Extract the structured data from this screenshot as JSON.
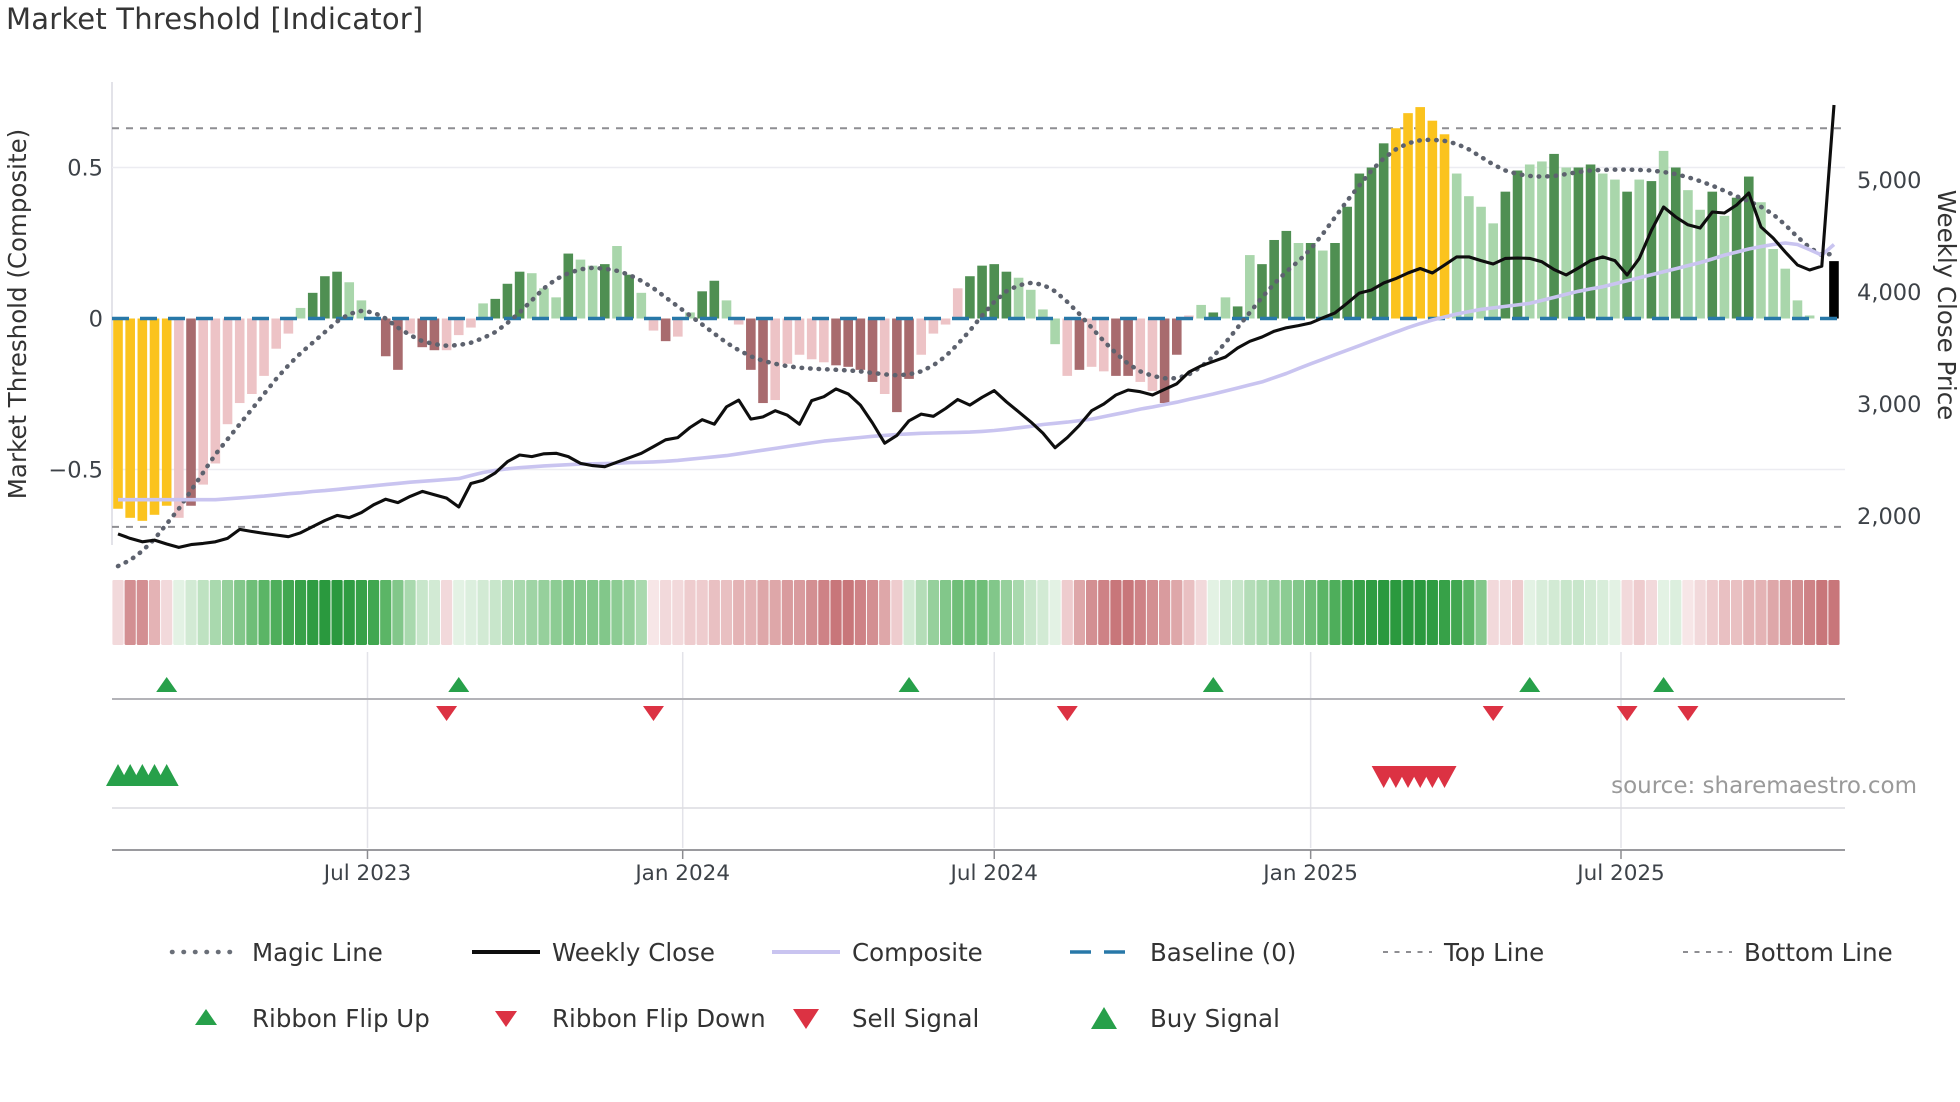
{
  "title": "Market Threshold [Indicator]",
  "source": "source: sharemaestro.com",
  "axes": {
    "left_title": "Market Threshold (Composite)",
    "right_title": "Weekly Close Price",
    "left_ticks": [
      {
        "label": "0.5",
        "value": 0.5
      },
      {
        "label": "0",
        "value": 0.0
      },
      {
        "label": "−0.5",
        "value": -0.5
      }
    ],
    "right_ticks": [
      {
        "label": "5,000",
        "value": 5000
      },
      {
        "label": "4,000",
        "value": 4000
      },
      {
        "label": "3,000",
        "value": 3000
      },
      {
        "label": "2,000",
        "value": 2000
      }
    ],
    "x_ticks": [
      {
        "label": "Jul 2023",
        "week": 20.5
      },
      {
        "label": "Jan 2024",
        "week": 46.4
      },
      {
        "label": "Jul 2024",
        "week": 72.0
      },
      {
        "label": "Jan 2025",
        "week": 98.0
      },
      {
        "label": "Jul 2025",
        "week": 123.5
      }
    ]
  },
  "colors": {
    "bar_yellow": "#FBC31E",
    "bar_light_pink": "#EDC3C6",
    "bar_dark_red": "#A86B6E",
    "bar_light_green": "#A9D6AB",
    "bar_dark_green": "#4F8F52",
    "baseline_blue": "#2878A8",
    "magic_gray": "#5D626E",
    "composite_purple": "#C9C4F0",
    "weekly_close_black": "#0E0E0E",
    "band_gray": "#8E8E92",
    "grid_light": "#ECECF1",
    "signal_green": "#27A04A",
    "signal_red": "#DC3243"
  },
  "chart_data": {
    "type": "bar",
    "title": "Market Threshold [Indicator]",
    "ylabel_left": "Market Threshold (Composite)",
    "ylabel_right": "Weekly Close Price",
    "ylim_left": [
      -0.75,
      0.78
    ],
    "baseline": 0,
    "top_line": 0.63,
    "bottom_line": -0.69,
    "weeks": 142,
    "bar_values": [
      -0.63,
      -0.66,
      -0.67,
      -0.65,
      -0.62,
      -0.66,
      -0.62,
      -0.55,
      -0.48,
      -0.35,
      -0.28,
      -0.25,
      -0.19,
      -0.1,
      -0.05,
      0.035,
      0.085,
      0.14,
      0.155,
      0.12,
      0.06,
      0.005,
      -0.125,
      -0.17,
      -0.05,
      -0.095,
      -0.105,
      -0.105,
      -0.055,
      -0.03,
      0.05,
      0.065,
      0.115,
      0.155,
      0.15,
      0.1,
      0.07,
      0.215,
      0.195,
      0.175,
      0.18,
      0.24,
      0.145,
      0.085,
      -0.04,
      -0.075,
      -0.06,
      0.02,
      0.09,
      0.125,
      0.06,
      -0.02,
      -0.17,
      -0.28,
      -0.27,
      -0.15,
      -0.12,
      -0.135,
      -0.145,
      -0.155,
      -0.16,
      -0.17,
      -0.21,
      -0.25,
      -0.31,
      -0.2,
      -0.12,
      -0.05,
      -0.02,
      0.1,
      0.14,
      0.175,
      0.18,
      0.155,
      0.135,
      0.095,
      0.03,
      -0.085,
      -0.19,
      -0.17,
      -0.16,
      -0.175,
      -0.19,
      -0.19,
      -0.21,
      -0.24,
      -0.28,
      -0.12,
      0.01,
      0.045,
      0.02,
      0.07,
      0.04,
      0.21,
      0.18,
      0.26,
      0.29,
      0.25,
      0.25,
      0.225,
      0.25,
      0.37,
      0.48,
      0.5,
      0.58,
      0.63,
      0.68,
      0.7,
      0.655,
      0.61,
      0.48,
      0.405,
      0.37,
      0.315,
      0.42,
      0.49,
      0.51,
      0.52,
      0.545,
      0.5,
      0.5,
      0.51,
      0.48,
      0.46,
      0.42,
      0.46,
      0.455,
      0.555,
      0.5,
      0.425,
      0.36,
      0.42,
      0.34,
      0.4,
      0.47,
      0.385,
      0.23,
      0.165,
      0.06,
      0.01,
      0.0,
      0.19
    ],
    "bar_colors": "YYYYYprppppppppgGGGgggrrprrpppgGGGgggGggGgGgprpgGGgprrppppprrrrprrppppGGGGggggprpprrpprrpgGgGgGGGgGgGGGGGYYYYYggggGGggGgGGggGgGgGggGgGGgggggG",
    "weekly_close": [
      1840,
      1800,
      1770,
      1785,
      1750,
      1720,
      1745,
      1755,
      1770,
      1800,
      1880,
      1862,
      1845,
      1830,
      1815,
      1850,
      1905,
      1960,
      2005,
      1985,
      2030,
      2100,
      2150,
      2120,
      2175,
      2220,
      2190,
      2160,
      2080,
      2290,
      2320,
      2385,
      2485,
      2545,
      2530,
      2555,
      2560,
      2530,
      2470,
      2450,
      2440,
      2480,
      2520,
      2560,
      2620,
      2680,
      2700,
      2790,
      2860,
      2820,
      2975,
      3035,
      2865,
      2885,
      2940,
      2900,
      2820,
      3030,
      3065,
      3135,
      3090,
      2990,
      2830,
      2650,
      2720,
      2850,
      2910,
      2890,
      2960,
      3040,
      2990,
      3060,
      3120,
      3020,
      2930,
      2840,
      2740,
      2610,
      2700,
      2810,
      2940,
      3000,
      3080,
      3125,
      3110,
      3080,
      3130,
      3180,
      3286,
      3340,
      3380,
      3420,
      3500,
      3560,
      3598,
      3650,
      3680,
      3700,
      3723,
      3770,
      3813,
      3900,
      3990,
      4018,
      4080,
      4120,
      4170,
      4210,
      4170,
      4240,
      4313,
      4313,
      4280,
      4250,
      4300,
      4304,
      4300,
      4270,
      4200,
      4152,
      4214,
      4280,
      4313,
      4280,
      4152,
      4300,
      4550,
      4759,
      4670,
      4600,
      4571,
      4714,
      4705,
      4777,
      4884,
      4580,
      4482,
      4357,
      4241,
      4196,
      4230,
      5670
    ],
    "composite": [
      -0.6,
      -0.6,
      -0.6,
      -0.6,
      -0.6,
      -0.6,
      -0.6,
      -0.6,
      -0.6,
      -0.597,
      -0.594,
      -0.591,
      -0.588,
      -0.584,
      -0.58,
      -0.577,
      -0.573,
      -0.57,
      -0.566,
      -0.562,
      -0.558,
      -0.554,
      -0.55,
      -0.546,
      -0.542,
      -0.539,
      -0.536,
      -0.533,
      -0.53,
      -0.52,
      -0.51,
      -0.503,
      -0.498,
      -0.494,
      -0.491,
      -0.488,
      -0.486,
      -0.484,
      -0.482,
      -0.481,
      -0.48,
      -0.479,
      -0.477,
      -0.476,
      -0.475,
      -0.473,
      -0.47,
      -0.466,
      -0.462,
      -0.458,
      -0.454,
      -0.448,
      -0.442,
      -0.436,
      -0.43,
      -0.424,
      -0.418,
      -0.412,
      -0.406,
      -0.402,
      -0.398,
      -0.394,
      -0.39,
      -0.387,
      -0.384,
      -0.382,
      -0.38,
      -0.379,
      -0.378,
      -0.377,
      -0.376,
      -0.374,
      -0.371,
      -0.367,
      -0.362,
      -0.357,
      -0.351,
      -0.347,
      -0.343,
      -0.338,
      -0.333,
      -0.325,
      -0.317,
      -0.309,
      -0.3,
      -0.293,
      -0.285,
      -0.277,
      -0.268,
      -0.259,
      -0.25,
      -0.24,
      -0.23,
      -0.22,
      -0.21,
      -0.196,
      -0.182,
      -0.166,
      -0.15,
      -0.135,
      -0.12,
      -0.105,
      -0.09,
      -0.075,
      -0.06,
      -0.045,
      -0.03,
      -0.017,
      -0.005,
      0.005,
      0.015,
      0.023,
      0.03,
      0.035,
      0.04,
      0.045,
      0.05,
      0.06,
      0.07,
      0.08,
      0.09,
      0.098,
      0.105,
      0.115,
      0.125,
      0.135,
      0.145,
      0.155,
      0.165,
      0.175,
      0.185,
      0.197,
      0.21,
      0.22,
      0.23,
      0.238,
      0.245,
      0.25,
      0.245,
      0.228,
      0.21,
      0.245
    ],
    "magic_line": [
      -0.82,
      -0.8,
      -0.77,
      -0.73,
      -0.68,
      -0.63,
      -0.57,
      -0.51,
      -0.45,
      -0.4,
      -0.35,
      -0.3,
      -0.25,
      -0.2,
      -0.155,
      -0.115,
      -0.08,
      -0.045,
      -0.01,
      0.015,
      0.025,
      0.02,
      0.0,
      -0.03,
      -0.055,
      -0.075,
      -0.085,
      -0.09,
      -0.088,
      -0.08,
      -0.065,
      -0.045,
      -0.015,
      0.02,
      0.06,
      0.1,
      0.13,
      0.15,
      0.163,
      0.168,
      0.165,
      0.158,
      0.145,
      0.125,
      0.1,
      0.07,
      0.04,
      0.01,
      -0.02,
      -0.05,
      -0.08,
      -0.105,
      -0.125,
      -0.14,
      -0.15,
      -0.158,
      -0.163,
      -0.166,
      -0.168,
      -0.17,
      -0.172,
      -0.175,
      -0.18,
      -0.185,
      -0.188,
      -0.185,
      -0.175,
      -0.155,
      -0.125,
      -0.085,
      -0.04,
      0.01,
      0.055,
      0.09,
      0.11,
      0.118,
      0.112,
      0.09,
      0.055,
      0.015,
      -0.03,
      -0.075,
      -0.115,
      -0.15,
      -0.175,
      -0.19,
      -0.198,
      -0.198,
      -0.185,
      -0.16,
      -0.125,
      -0.08,
      -0.03,
      0.02,
      0.07,
      0.115,
      0.155,
      0.19,
      0.23,
      0.28,
      0.335,
      0.39,
      0.44,
      0.49,
      0.53,
      0.56,
      0.58,
      0.59,
      0.592,
      0.588,
      0.578,
      0.56,
      0.535,
      0.51,
      0.49,
      0.478,
      0.472,
      0.47,
      0.472,
      0.478,
      0.485,
      0.49,
      0.492,
      0.493,
      0.493,
      0.492,
      0.49,
      0.485,
      0.478,
      0.468,
      0.455,
      0.44,
      0.423,
      0.405,
      0.388,
      0.37,
      0.345,
      0.31,
      0.27,
      0.235,
      0.21,
      0.215
    ],
    "ribbon_colors": [
      "#F2D9DB",
      "#D38F92",
      "#D38F92",
      "#E4B3B5",
      "#F2D9DB",
      "#E3F2E4",
      "#D2EAD4",
      "#BEE2C1",
      "#A9D9AE",
      "#96D09C",
      "#82C78A",
      "#6FBE78",
      "#5BB566",
      "#4EAE5B",
      "#41A750",
      "#37A148",
      "#2F9C42",
      "#2A993E",
      "#2A993E",
      "#2F9C42",
      "#37A148",
      "#41A750",
      "#5BB566",
      "#82C78A",
      "#A9D9AE",
      "#C8E6CB",
      "#D2EAD4",
      "#F2D9DB",
      "#E3F2E4",
      "#DCEFDE",
      "#D2EAD4",
      "#C8E6CB",
      "#B4DDB8",
      "#A9D9AE",
      "#9FD4A5",
      "#96D09C",
      "#8CCC93",
      "#82C78A",
      "#82C78A",
      "#82C78A",
      "#82C78A",
      "#8CCC93",
      "#96D09C",
      "#A9D9AE",
      "#F7E6E7",
      "#F2D9DB",
      "#F2D9DB",
      "#EECCCE",
      "#EECCCE",
      "#E9C0C2",
      "#E9C0C2",
      "#E4B3B5",
      "#E4B3B5",
      "#DEA7A9",
      "#DEA7A9",
      "#D99B9E",
      "#D99B9E",
      "#D38F92",
      "#CE8286",
      "#C8767A",
      "#C8767A",
      "#CE8286",
      "#D38F92",
      "#DEA7A9",
      "#EECCCE",
      "#D2EAD4",
      "#B4DDB8",
      "#96D09C",
      "#82C78A",
      "#6FBE78",
      "#6FBE78",
      "#6FBE78",
      "#82C78A",
      "#96D09C",
      "#A9D9AE",
      "#C8E6CB",
      "#D2EAD4",
      "#E3F2E4",
      "#EECCCE",
      "#DEA7A9",
      "#D38F92",
      "#CE8286",
      "#C8767A",
      "#C8767A",
      "#CE8286",
      "#D38F92",
      "#D99B9E",
      "#DEA7A9",
      "#E9C0C2",
      "#F2D9DB",
      "#E3F2E4",
      "#D2EAD4",
      "#C8E6CB",
      "#B4DDB8",
      "#A9D9AE",
      "#96D09C",
      "#8CCC93",
      "#82C78A",
      "#6FBE78",
      "#5BB566",
      "#4EAE5B",
      "#41A750",
      "#37A148",
      "#2F9C42",
      "#2A993E",
      "#2A993E",
      "#2A993E",
      "#2A993E",
      "#2F9C42",
      "#37A148",
      "#41A750",
      "#5BB566",
      "#82C78A",
      "#F2D9DB",
      "#F2D9DB",
      "#EECCCE",
      "#E3F2E4",
      "#D8EDDA",
      "#D2EAD4",
      "#C8E6CB",
      "#C8E6CB",
      "#D2EAD4",
      "#D8EDDA",
      "#E3F2E4",
      "#F2D9DB",
      "#EECCCE",
      "#F2D9DB",
      "#E3F2E4",
      "#DCEFDE",
      "#F7E6E7",
      "#F2D9DB",
      "#EECCCE",
      "#E9C0C2",
      "#E9C0C2",
      "#E4B3B5",
      "#E4B3B5",
      "#DEA7A9",
      "#D99B9E",
      "#D38F92",
      "#CE8286",
      "#C8767A",
      "#C8767A"
    ],
    "flip_up_weeks": [
      4,
      28,
      65,
      90,
      116,
      127
    ],
    "flip_down_weeks": [
      27,
      44,
      78,
      113,
      124,
      129
    ],
    "buy_signal_weeks": [
      0,
      1,
      2,
      3,
      4
    ],
    "sell_signal_weeks": [
      104,
      105,
      106,
      107,
      108,
      109
    ]
  },
  "legend": {
    "items": [
      {
        "key": "magic-line",
        "label": "Magic Line"
      },
      {
        "key": "weekly-close",
        "label": "Weekly Close"
      },
      {
        "key": "composite",
        "label": "Composite"
      },
      {
        "key": "baseline",
        "label": "Baseline (0)"
      },
      {
        "key": "top-line",
        "label": "Top Line"
      },
      {
        "key": "bottom-line",
        "label": "Bottom Line"
      },
      {
        "key": "ribbon-flip-up",
        "label": "Ribbon Flip Up"
      },
      {
        "key": "ribbon-flip-down",
        "label": "Ribbon Flip Down"
      },
      {
        "key": "sell-signal",
        "label": "Sell Signal"
      },
      {
        "key": "buy-signal",
        "label": "Buy Signal"
      }
    ]
  }
}
